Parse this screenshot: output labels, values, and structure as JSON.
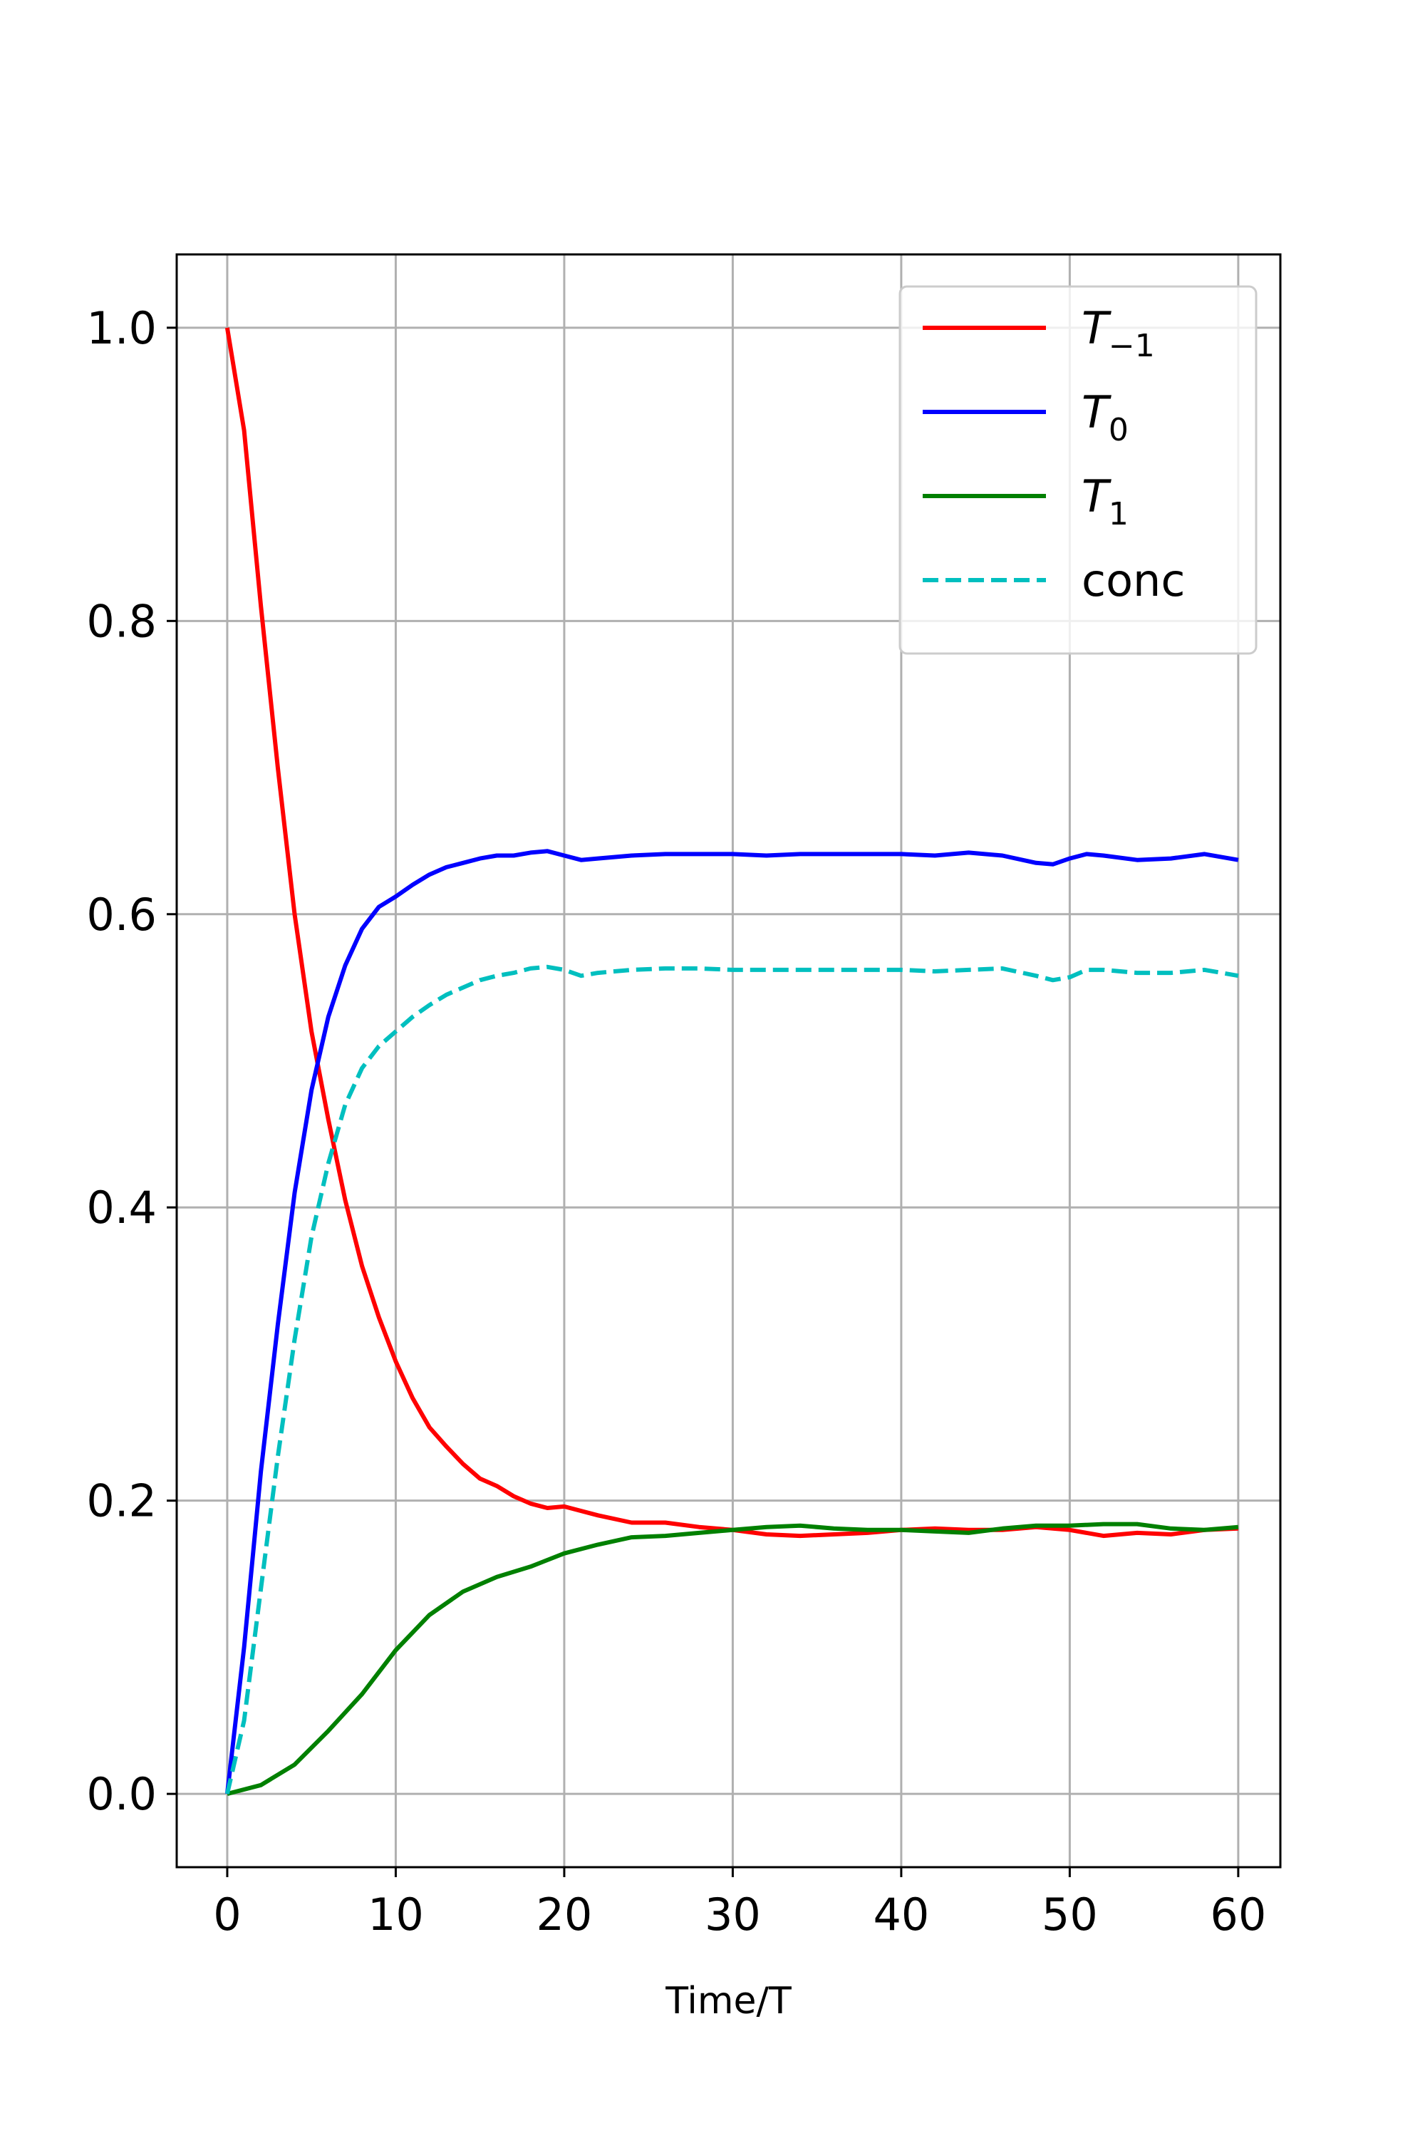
{
  "chart_data": {
    "type": "line",
    "title": "",
    "xlabel": "Time/T",
    "ylabel": "",
    "xlim": [
      -3,
      62.5
    ],
    "ylim": [
      -0.05,
      1.05
    ],
    "xticks": [
      0,
      10,
      20,
      30,
      40,
      50,
      60
    ],
    "xtick_labels": [
      "0",
      "10",
      "20",
      "30",
      "40",
      "50",
      "60"
    ],
    "yticks": [
      0.0,
      0.2,
      0.4,
      0.6,
      0.8,
      1.0
    ],
    "ytick_labels": [
      "0.0",
      "0.2",
      "0.4",
      "0.6",
      "0.8",
      "1.0"
    ],
    "grid": true,
    "legend_position": "top-right",
    "series": [
      {
        "name": "T_{-1}",
        "legend_main": "T",
        "legend_sub": "−1",
        "color": "#ff0000",
        "dash": "solid",
        "x": [
          0,
          1,
          2,
          3,
          4,
          5,
          6,
          7,
          8,
          9,
          10,
          11,
          12,
          13,
          14,
          15,
          16,
          17,
          18,
          19,
          20,
          22,
          24,
          26,
          28,
          30,
          32,
          34,
          36,
          38,
          40,
          42,
          44,
          46,
          48,
          50,
          52,
          54,
          56,
          58,
          60
        ],
        "y": [
          1.0,
          0.93,
          0.81,
          0.7,
          0.6,
          0.52,
          0.46,
          0.405,
          0.36,
          0.325,
          0.295,
          0.27,
          0.25,
          0.237,
          0.225,
          0.215,
          0.21,
          0.203,
          0.198,
          0.195,
          0.196,
          0.19,
          0.185,
          0.185,
          0.182,
          0.18,
          0.177,
          0.176,
          0.177,
          0.178,
          0.18,
          0.181,
          0.18,
          0.18,
          0.182,
          0.18,
          0.176,
          0.178,
          0.177,
          0.18,
          0.181
        ]
      },
      {
        "name": "T_0",
        "legend_main": "T",
        "legend_sub": "0",
        "color": "#0000ff",
        "dash": "solid",
        "x": [
          0,
          1,
          2,
          3,
          4,
          5,
          6,
          7,
          8,
          9,
          10,
          11,
          12,
          13,
          14,
          15,
          16,
          17,
          18,
          19,
          20,
          21,
          22,
          24,
          26,
          28,
          30,
          32,
          34,
          36,
          38,
          40,
          42,
          44,
          46,
          48,
          49,
          50,
          51,
          52,
          54,
          56,
          58,
          60
        ],
        "y": [
          0.0,
          0.1,
          0.22,
          0.32,
          0.41,
          0.48,
          0.53,
          0.565,
          0.59,
          0.605,
          0.612,
          0.62,
          0.627,
          0.632,
          0.635,
          0.638,
          0.64,
          0.64,
          0.642,
          0.643,
          0.64,
          0.637,
          0.638,
          0.64,
          0.641,
          0.641,
          0.641,
          0.64,
          0.641,
          0.641,
          0.641,
          0.641,
          0.64,
          0.642,
          0.64,
          0.635,
          0.634,
          0.638,
          0.641,
          0.64,
          0.637,
          0.638,
          0.641,
          0.637
        ]
      },
      {
        "name": "T_1",
        "legend_main": "T",
        "legend_sub": "1",
        "color": "#008000",
        "dash": "solid",
        "x": [
          0,
          2,
          4,
          6,
          8,
          10,
          12,
          14,
          16,
          18,
          20,
          22,
          24,
          26,
          28,
          30,
          32,
          34,
          36,
          38,
          40,
          42,
          44,
          46,
          48,
          50,
          52,
          54,
          56,
          58,
          60
        ],
        "y": [
          0.0,
          0.006,
          0.02,
          0.043,
          0.068,
          0.098,
          0.122,
          0.138,
          0.148,
          0.155,
          0.164,
          0.17,
          0.175,
          0.176,
          0.178,
          0.18,
          0.182,
          0.183,
          0.181,
          0.18,
          0.18,
          0.179,
          0.178,
          0.181,
          0.183,
          0.183,
          0.184,
          0.184,
          0.181,
          0.18,
          0.182
        ]
      },
      {
        "name": "conc",
        "legend_main": "conc",
        "legend_sub": "",
        "color": "#00bfbf",
        "dash": "dashed",
        "x": [
          0,
          1,
          2,
          3,
          4,
          5,
          6,
          7,
          8,
          9,
          10,
          11,
          12,
          13,
          14,
          15,
          16,
          17,
          18,
          19,
          20,
          21,
          22,
          24,
          26,
          28,
          30,
          32,
          34,
          36,
          38,
          40,
          42,
          44,
          46,
          48,
          49,
          50,
          51,
          52,
          54,
          56,
          58,
          60
        ],
        "y": [
          0.0,
          0.05,
          0.14,
          0.23,
          0.31,
          0.38,
          0.43,
          0.47,
          0.495,
          0.51,
          0.52,
          0.53,
          0.538,
          0.545,
          0.55,
          0.555,
          0.558,
          0.56,
          0.563,
          0.564,
          0.562,
          0.558,
          0.56,
          0.562,
          0.563,
          0.563,
          0.562,
          0.562,
          0.562,
          0.562,
          0.562,
          0.562,
          0.561,
          0.562,
          0.563,
          0.558,
          0.555,
          0.557,
          0.562,
          0.562,
          0.56,
          0.56,
          0.562,
          0.558
        ]
      }
    ]
  }
}
